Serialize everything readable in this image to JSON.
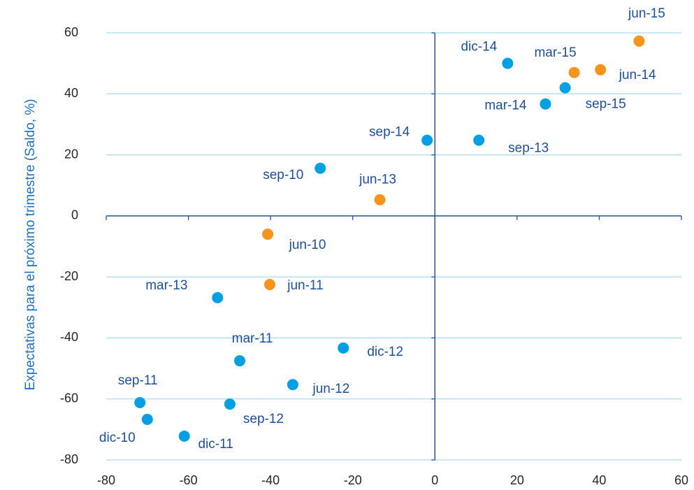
{
  "chart_data": {
    "type": "scatter",
    "y_label": "Expectativas para el próximo trimestre  (Saldo, %)",
    "xlim": [
      -80,
      60
    ],
    "xticks": [
      -80,
      -60,
      -40,
      -20,
      0,
      20,
      40,
      60
    ],
    "ylim": [
      -80,
      60
    ],
    "yticks": [
      -80,
      -60,
      -40,
      -20,
      0,
      20,
      40,
      60
    ],
    "grid": true,
    "series": [
      {
        "color": "#00a0e3",
        "labels": [
          "dic-14",
          "sep-15",
          "mar-14",
          "sep-14",
          "sep-13",
          "sep-10",
          "mar-13",
          "dic-12",
          "mar-11",
          "jun-12",
          "sep-11",
          "sep-12",
          "dic-10",
          "dic-11"
        ],
        "x": [
          17.7,
          31.7,
          26.9,
          -1.9,
          10.7,
          -27.9,
          -52.9,
          -22.3,
          -47.5,
          -34.6,
          -71.8,
          -49.9,
          -70.0,
          -61.0
        ],
        "values": [
          50.0,
          42.0,
          36.7,
          24.8,
          24.8,
          15.6,
          -26.8,
          -43.3,
          -47.5,
          -55.3,
          -61.2,
          -61.7,
          -66.7,
          -72.2
        ]
      },
      {
        "color": "#f7941d",
        "labels": [
          "jun-15",
          "mar-15",
          "jun-14",
          "jun-13",
          "jun-10",
          "jun-11"
        ],
        "x": [
          49.7,
          33.9,
          40.3,
          -13.4,
          -40.7,
          -40.2
        ],
        "values": [
          57.3,
          47.0,
          47.9,
          5.3,
          -6.0,
          -22.5
        ]
      }
    ]
  }
}
